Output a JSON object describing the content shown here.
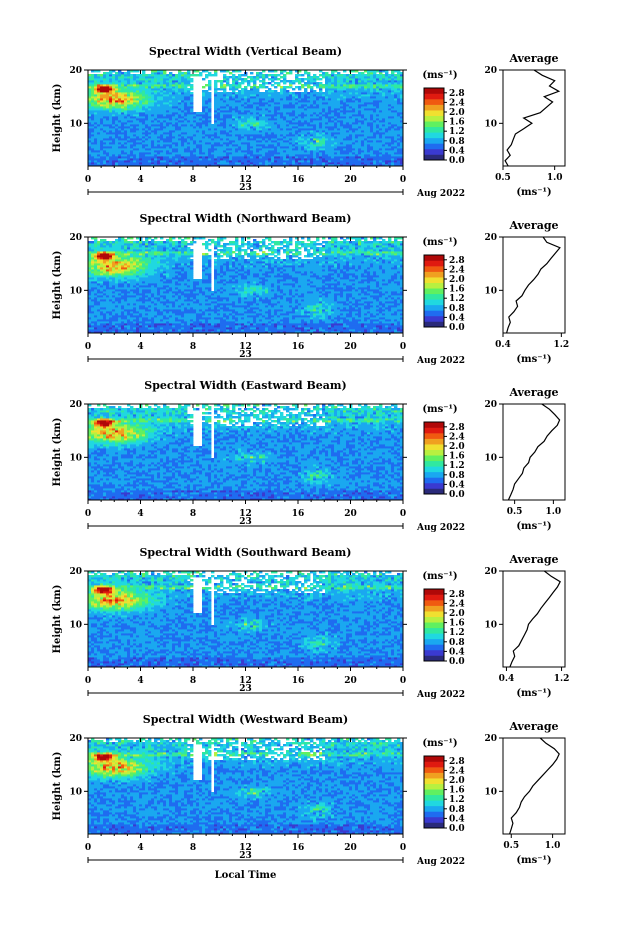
{
  "figure": {
    "x_label": "Local Time",
    "date_label": "Aug 2022"
  },
  "colorbar": {
    "unit": "(ms⁻¹)",
    "ticks": [
      "0.0",
      "0.4",
      "0.8",
      "1.2",
      "1.6",
      "2.0",
      "2.4",
      "2.8"
    ],
    "colors": [
      "#2a2a7a",
      "#3a3ad0",
      "#1f6cf0",
      "#1aa8f0",
      "#20d8e0",
      "#30e8a0",
      "#60f060",
      "#b8f040",
      "#f0e030",
      "#f0a020",
      "#f05a10",
      "#e01a10",
      "#b00808"
    ]
  },
  "chart_data": [
    {
      "type": "heatmap",
      "title": "Spectral Width (Vertical Beam)",
      "ylabel": "Height (km)",
      "x_ticks": [
        "0",
        "4",
        "8",
        "12",
        "16",
        "20",
        "0"
      ],
      "day_label": "23",
      "y_ticks": [
        "10",
        "20"
      ],
      "xlim": [
        0,
        24
      ],
      "ylim": [
        2,
        20
      ],
      "clim": [
        0.0,
        3.0
      ],
      "average": {
        "title": "Average",
        "xlabel": "(ms⁻¹)",
        "x_ticks": [
          "0.5",
          "1.0"
        ],
        "xlim": [
          0.5,
          1.1
        ],
        "height": [
          2,
          3,
          4,
          5,
          6,
          7,
          8,
          9,
          10,
          11,
          12,
          13,
          14,
          15,
          16,
          17,
          18,
          19,
          20
        ],
        "values": [
          0.55,
          0.52,
          0.57,
          0.54,
          0.58,
          0.6,
          0.62,
          0.7,
          0.78,
          0.7,
          0.86,
          0.92,
          0.98,
          0.9,
          1.04,
          0.95,
          1.0,
          0.88,
          0.8
        ]
      }
    },
    {
      "type": "heatmap",
      "title": "Spectral Width (Northward Beam)",
      "ylabel": "Height (km)",
      "x_ticks": [
        "0",
        "4",
        "8",
        "12",
        "16",
        "20",
        "0"
      ],
      "day_label": "23",
      "y_ticks": [
        "10",
        "20"
      ],
      "xlim": [
        0,
        24
      ],
      "ylim": [
        2,
        20
      ],
      "clim": [
        0.0,
        3.0
      ],
      "average": {
        "title": "Average",
        "xlabel": "(ms⁻¹)",
        "x_ticks": [
          "0.4",
          "1.2"
        ],
        "xlim": [
          0.4,
          1.25
        ],
        "height": [
          2,
          3,
          4,
          5,
          6,
          7,
          8,
          9,
          10,
          11,
          12,
          13,
          14,
          15,
          16,
          17,
          18,
          19,
          20
        ],
        "values": [
          0.45,
          0.47,
          0.5,
          0.48,
          0.55,
          0.6,
          0.58,
          0.66,
          0.7,
          0.75,
          0.82,
          0.88,
          0.92,
          1.0,
          1.06,
          1.12,
          1.18,
          1.0,
          0.95
        ]
      }
    },
    {
      "type": "heatmap",
      "title": "Spectral Width (Eastward Beam)",
      "ylabel": "Height (km)",
      "x_ticks": [
        "0",
        "4",
        "8",
        "12",
        "16",
        "20",
        "0"
      ],
      "day_label": "23",
      "y_ticks": [
        "10",
        "20"
      ],
      "xlim": [
        0,
        24
      ],
      "ylim": [
        2,
        20
      ],
      "clim": [
        0.0,
        3.0
      ],
      "average": {
        "title": "Average",
        "xlabel": "(ms⁻¹)",
        "x_ticks": [
          "0.5",
          "1.0"
        ],
        "xlim": [
          0.35,
          1.15
        ],
        "height": [
          2,
          3,
          4,
          5,
          6,
          7,
          8,
          9,
          10,
          11,
          12,
          13,
          14,
          15,
          16,
          17,
          18,
          19,
          20
        ],
        "values": [
          0.42,
          0.45,
          0.48,
          0.5,
          0.55,
          0.6,
          0.62,
          0.68,
          0.7,
          0.76,
          0.8,
          0.88,
          0.92,
          0.98,
          1.05,
          1.08,
          1.02,
          0.95,
          0.85
        ]
      }
    },
    {
      "type": "heatmap",
      "title": "Spectral Width (Southward Beam)",
      "ylabel": "Height (km)",
      "x_ticks": [
        "0",
        "4",
        "8",
        "12",
        "16",
        "20",
        "0"
      ],
      "day_label": "23",
      "y_ticks": [
        "10",
        "20"
      ],
      "xlim": [
        0,
        24
      ],
      "ylim": [
        2,
        20
      ],
      "clim": [
        0.0,
        3.0
      ],
      "average": {
        "title": "Average",
        "xlabel": "(ms⁻¹)",
        "x_ticks": [
          "0.4",
          "1.2"
        ],
        "xlim": [
          0.35,
          1.25
        ],
        "height": [
          2,
          3,
          4,
          5,
          6,
          7,
          8,
          9,
          10,
          11,
          12,
          13,
          14,
          15,
          16,
          17,
          18,
          19,
          20
        ],
        "values": [
          0.45,
          0.48,
          0.52,
          0.5,
          0.58,
          0.62,
          0.66,
          0.7,
          0.72,
          0.78,
          0.85,
          0.9,
          0.96,
          1.02,
          1.08,
          1.14,
          1.18,
          1.05,
          0.95
        ]
      }
    },
    {
      "type": "heatmap",
      "title": "Spectral Width (Westward Beam)",
      "ylabel": "Height (km)",
      "x_ticks": [
        "0",
        "4",
        "8",
        "12",
        "16",
        "20",
        "0"
      ],
      "day_label": "23",
      "y_ticks": [
        "10",
        "20"
      ],
      "xlim": [
        0,
        24
      ],
      "ylim": [
        2,
        20
      ],
      "clim": [
        0.0,
        3.0
      ],
      "average": {
        "title": "Average",
        "xlabel": "(ms⁻¹)",
        "x_ticks": [
          "0.5",
          "1.0"
        ],
        "xlim": [
          0.4,
          1.15
        ],
        "height": [
          2,
          3,
          4,
          5,
          6,
          7,
          8,
          9,
          10,
          11,
          12,
          13,
          14,
          15,
          16,
          17,
          18,
          19,
          20
        ],
        "values": [
          0.48,
          0.5,
          0.52,
          0.5,
          0.56,
          0.6,
          0.62,
          0.66,
          0.72,
          0.76,
          0.82,
          0.88,
          0.94,
          1.0,
          1.05,
          1.08,
          1.02,
          0.92,
          0.85
        ]
      }
    }
  ]
}
